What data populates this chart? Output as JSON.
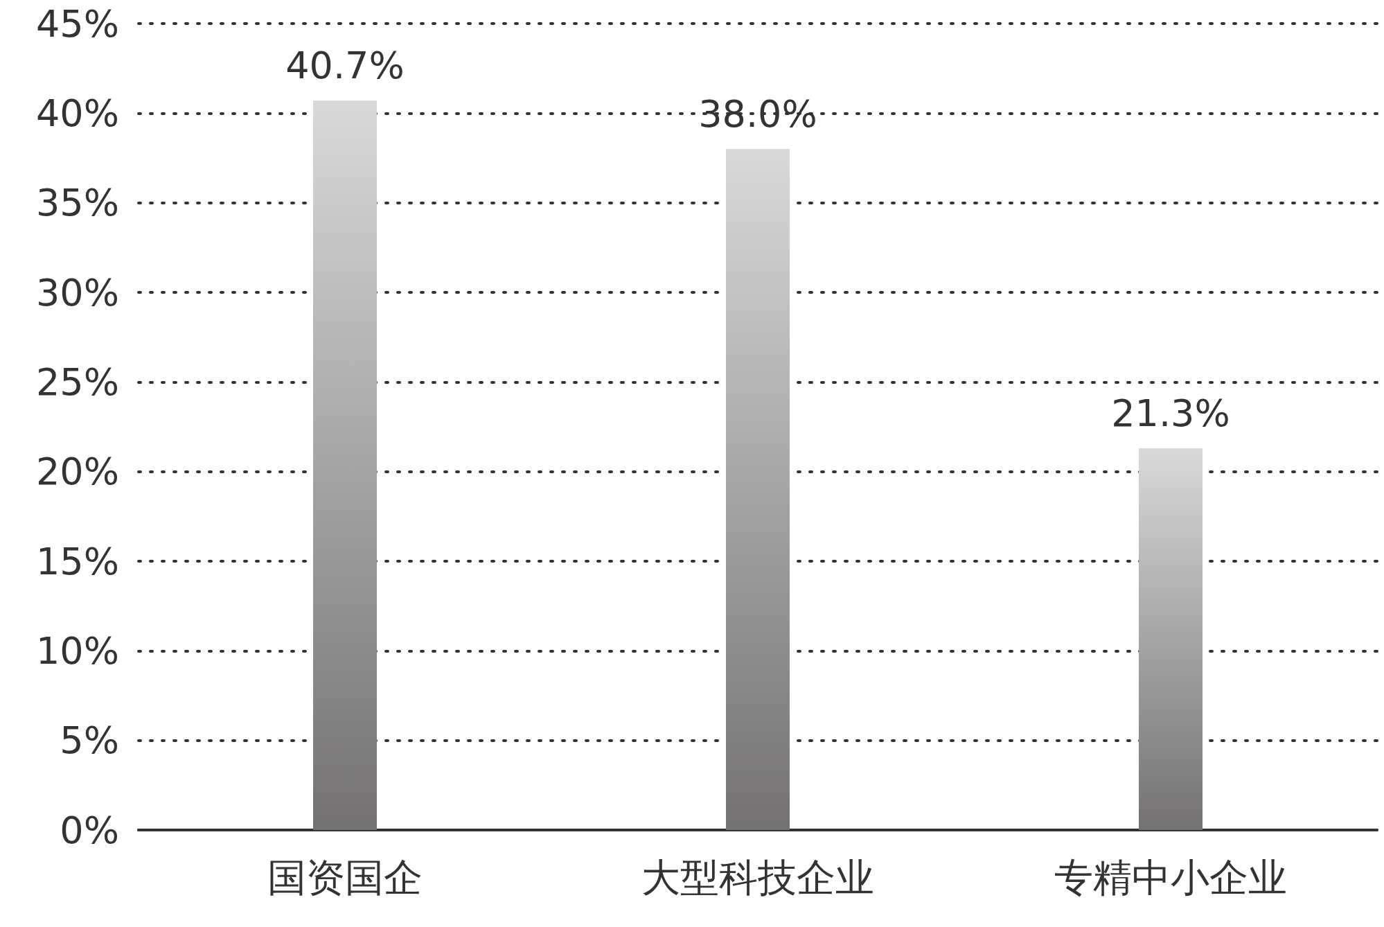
{
  "chart_data": {
    "type": "bar",
    "categories": [
      "国资国企",
      "大型科技企业",
      "专精中小企业"
    ],
    "values": [
      40.7,
      38.0,
      21.3
    ],
    "value_labels": [
      "40.7%",
      "38.0%",
      "21.3%"
    ],
    "color": "#737171",
    "ylim": [
      0,
      45
    ],
    "yticks": [
      {
        "value": 0,
        "label": "0%"
      },
      {
        "value": 5,
        "label": "5%"
      },
      {
        "value": 10,
        "label": "10%"
      },
      {
        "value": 15,
        "label": "15%"
      },
      {
        "value": 20,
        "label": "20%"
      },
      {
        "value": 25,
        "label": "25%"
      },
      {
        "value": 30,
        "label": "30%"
      },
      {
        "value": 35,
        "label": "35%"
      },
      {
        "value": 40,
        "label": "40%"
      },
      {
        "value": 45,
        "label": "45%"
      }
    ],
    "grid": "y",
    "line_style": "dotted"
  }
}
